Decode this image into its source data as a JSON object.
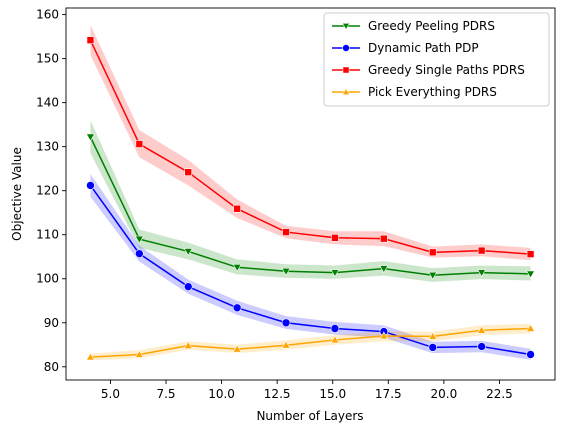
{
  "chart_data": {
    "type": "line",
    "xlabel": "Number of Layers",
    "ylabel": "Objective Value",
    "xlim": [
      3.0,
      25.0
    ],
    "ylim": [
      77.0,
      161.5
    ],
    "xticks": [
      5.0,
      7.5,
      10.0,
      12.5,
      15.0,
      17.5,
      20.0,
      22.5
    ],
    "xtick_labels": [
      "5.0",
      "7.5",
      "10.0",
      "12.5",
      "15.0",
      "17.5",
      "20.0",
      "22.5"
    ],
    "yticks": [
      80,
      90,
      100,
      110,
      120,
      130,
      140,
      150,
      160
    ],
    "ytick_labels": [
      "80",
      "90",
      "100",
      "110",
      "120",
      "130",
      "140",
      "150",
      "160"
    ],
    "legend_position": "top-right",
    "grid": false,
    "x": [
      4.1,
      6.3,
      8.5,
      10.7,
      12.9,
      15.1,
      17.3,
      19.5,
      21.7,
      23.9
    ],
    "series": [
      {
        "name": "Greedy Peeling PDRS",
        "color": "#008000",
        "marker": "triangle-down",
        "values": [
          132.2,
          109.0,
          106.2,
          102.6,
          101.7,
          101.4,
          102.3,
          100.8,
          101.4,
          101.1
        ],
        "ci_lower": [
          128.5,
          107.0,
          104.4,
          101.0,
          100.2,
          100.0,
          100.7,
          99.3,
          99.9,
          99.6
        ],
        "ci_upper": [
          136.0,
          111.2,
          108.2,
          104.4,
          103.3,
          103.0,
          104.0,
          102.4,
          103.0,
          102.8
        ]
      },
      {
        "name": "Dynamic Path PDP",
        "color": "#0000ff",
        "marker": "circle",
        "values": [
          121.2,
          105.7,
          98.2,
          93.4,
          90.0,
          88.7,
          88.0,
          84.4,
          84.6,
          82.8
        ],
        "ci_lower": [
          118.6,
          103.9,
          96.6,
          91.8,
          88.6,
          87.3,
          86.6,
          83.1,
          83.3,
          81.6
        ],
        "ci_upper": [
          123.8,
          107.5,
          99.8,
          95.0,
          91.5,
          90.2,
          89.4,
          85.7,
          85.9,
          84.1
        ]
      },
      {
        "name": "Greedy Single Paths PDRS",
        "color": "#ff0000",
        "marker": "square",
        "values": [
          154.2,
          130.6,
          124.2,
          115.9,
          110.6,
          109.3,
          109.1,
          106.0,
          106.4,
          105.6
        ],
        "ci_lower": [
          150.8,
          127.6,
          121.2,
          113.8,
          109.2,
          107.8,
          107.4,
          104.8,
          105.1,
          104.2
        ],
        "ci_upper": [
          157.6,
          133.8,
          127.0,
          118.0,
          112.0,
          110.8,
          110.8,
          107.3,
          107.8,
          107.0
        ]
      },
      {
        "name": "Pick Everything PDRS",
        "color": "#ffa500",
        "marker": "triangle-up",
        "values": [
          82.2,
          82.8,
          84.8,
          84.0,
          84.9,
          86.1,
          87.0,
          86.9,
          88.3,
          88.7
        ],
        "ci_lower": [
          81.5,
          81.9,
          83.9,
          83.1,
          83.9,
          85.0,
          85.8,
          85.8,
          87.2,
          87.6
        ],
        "ci_upper": [
          83.0,
          83.8,
          85.8,
          85.0,
          86.0,
          87.2,
          88.1,
          88.0,
          89.4,
          89.8
        ]
      }
    ]
  }
}
